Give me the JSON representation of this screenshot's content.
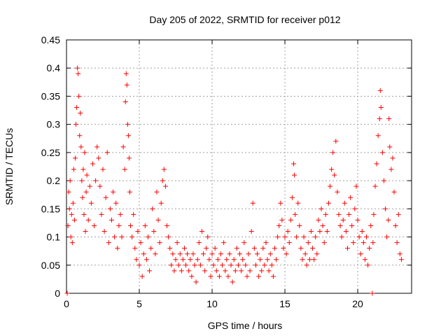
{
  "chart_data": {
    "type": "scatter",
    "title": "Day 205 of 2022, SRMTID for receiver p012",
    "xlabel": "GPS time / hours",
    "ylabel": "SRMTID / TECUs",
    "xlim": [
      0,
      23.7
    ],
    "ylim": [
      0,
      0.45
    ],
    "xticks": [
      0,
      5,
      10,
      15,
      20
    ],
    "xtick_labels": [
      "0",
      "5",
      "10",
      "15",
      "20"
    ],
    "yticks": [
      0,
      0.05,
      0.1,
      0.15,
      0.2,
      0.25,
      0.3,
      0.35,
      0.4,
      0.45
    ],
    "ytick_labels": [
      "0",
      "0.05",
      "0.1",
      "0.15",
      "0.2",
      "0.25",
      "0.3",
      "0.35",
      "0.4",
      "0.45"
    ],
    "grid": true,
    "marker": "+",
    "color": "#ff0000",
    "series": [
      {
        "name": "p012",
        "points": [
          [
            0.05,
            0.0
          ],
          [
            0.1,
            0.12
          ],
          [
            0.15,
            0.18
          ],
          [
            0.2,
            0.15
          ],
          [
            0.25,
            0.2
          ],
          [
            0.3,
            0.1
          ],
          [
            0.35,
            0.14
          ],
          [
            0.4,
            0.09
          ],
          [
            0.45,
            0.16
          ],
          [
            0.5,
            0.22
          ],
          [
            0.55,
            0.13
          ],
          [
            0.6,
            0.24
          ],
          [
            0.65,
            0.3
          ],
          [
            0.7,
            0.33
          ],
          [
            0.75,
            0.4
          ],
          [
            0.8,
            0.39
          ],
          [
            0.85,
            0.35
          ],
          [
            0.9,
            0.28
          ],
          [
            0.95,
            0.32
          ],
          [
            1.0,
            0.26
          ],
          [
            1.05,
            0.2
          ],
          [
            1.1,
            0.17
          ],
          [
            1.15,
            0.22
          ],
          [
            1.2,
            0.14
          ],
          [
            1.25,
            0.25
          ],
          [
            1.3,
            0.11
          ],
          [
            1.35,
            0.18
          ],
          [
            1.4,
            0.21
          ],
          [
            1.5,
            0.13
          ],
          [
            1.6,
            0.19
          ],
          [
            1.7,
            0.16
          ],
          [
            1.8,
            0.23
          ],
          [
            1.9,
            0.12
          ],
          [
            2.0,
            0.2
          ],
          [
            2.1,
            0.26
          ],
          [
            2.2,
            0.24
          ],
          [
            2.3,
            0.19
          ],
          [
            2.4,
            0.14
          ],
          [
            2.5,
            0.22
          ],
          [
            2.6,
            0.11
          ],
          [
            2.7,
            0.17
          ],
          [
            2.8,
            0.25
          ],
          [
            2.9,
            0.09
          ],
          [
            3.0,
            0.15
          ],
          [
            3.1,
            0.13
          ],
          [
            3.2,
            0.18
          ],
          [
            3.3,
            0.1
          ],
          [
            3.4,
            0.16
          ],
          [
            3.5,
            0.08
          ],
          [
            3.6,
            0.12
          ],
          [
            3.7,
            0.14
          ],
          [
            3.8,
            0.1
          ],
          [
            3.9,
            0.26
          ],
          [
            4.0,
            0.22
          ],
          [
            4.05,
            0.34
          ],
          [
            4.1,
            0.39
          ],
          [
            4.15,
            0.37
          ],
          [
            4.2,
            0.3
          ],
          [
            4.25,
            0.28
          ],
          [
            4.3,
            0.24
          ],
          [
            4.35,
            0.18
          ],
          [
            4.4,
            0.12
          ],
          [
            4.5,
            0.1
          ],
          [
            4.6,
            0.14
          ],
          [
            4.7,
            0.08
          ],
          [
            4.8,
            0.06
          ],
          [
            4.9,
            0.11
          ],
          [
            5.0,
            0.05
          ],
          [
            5.1,
            0.09
          ],
          [
            5.2,
            0.03
          ],
          [
            5.3,
            0.07
          ],
          [
            5.4,
            0.12
          ],
          [
            5.5,
            0.06
          ],
          [
            5.6,
            0.1
          ],
          [
            5.7,
            0.04
          ],
          [
            5.8,
            0.08
          ],
          [
            5.9,
            0.15
          ],
          [
            6.0,
            0.11
          ],
          [
            6.1,
            0.07
          ],
          [
            6.2,
            0.18
          ],
          [
            6.3,
            0.13
          ],
          [
            6.4,
            0.09
          ],
          [
            6.5,
            0.16
          ],
          [
            6.6,
            0.2
          ],
          [
            6.7,
            0.22
          ],
          [
            6.8,
            0.19
          ],
          [
            6.9,
            0.12
          ],
          [
            7.0,
            0.1
          ],
          [
            7.1,
            0.08
          ],
          [
            7.2,
            0.05
          ],
          [
            7.3,
            0.07
          ],
          [
            7.4,
            0.04
          ],
          [
            7.5,
            0.06
          ],
          [
            7.6,
            0.09
          ],
          [
            7.7,
            0.05
          ],
          [
            7.8,
            0.07
          ],
          [
            7.9,
            0.04
          ],
          [
            8.0,
            0.06
          ],
          [
            8.1,
            0.08
          ],
          [
            8.2,
            0.05
          ],
          [
            8.3,
            0.07
          ],
          [
            8.4,
            0.04
          ],
          [
            8.5,
            0.06
          ],
          [
            8.6,
            0.03
          ],
          [
            8.7,
            0.07
          ],
          [
            8.8,
            0.05
          ],
          [
            8.9,
            0.02
          ],
          [
            9.0,
            0.06
          ],
          [
            9.1,
            0.09
          ],
          [
            9.2,
            0.05
          ],
          [
            9.3,
            0.11
          ],
          [
            9.4,
            0.07
          ],
          [
            9.5,
            0.04
          ],
          [
            9.6,
            0.08
          ],
          [
            9.7,
            0.1
          ],
          [
            9.8,
            0.06
          ],
          [
            9.9,
            0.03
          ],
          [
            10.0,
            0.07
          ],
          [
            10.1,
            0.05
          ],
          [
            10.2,
            0.08
          ],
          [
            10.3,
            0.04
          ],
          [
            10.4,
            0.06
          ],
          [
            10.5,
            0.03
          ],
          [
            10.6,
            0.07
          ],
          [
            10.7,
            0.05
          ],
          [
            10.8,
            0.09
          ],
          [
            10.9,
            0.04
          ],
          [
            11.0,
            0.06
          ],
          [
            11.1,
            0.03
          ],
          [
            11.2,
            0.07
          ],
          [
            11.3,
            0.05
          ],
          [
            11.4,
            0.02
          ],
          [
            11.5,
            0.06
          ],
          [
            11.6,
            0.04
          ],
          [
            11.7,
            0.08
          ],
          [
            11.8,
            0.05
          ],
          [
            11.9,
            0.07
          ],
          [
            12.0,
            0.04
          ],
          [
            12.1,
            0.06
          ],
          [
            12.2,
            0.09
          ],
          [
            12.3,
            0.05
          ],
          [
            12.4,
            0.03
          ],
          [
            12.5,
            0.07
          ],
          [
            12.6,
            0.04
          ],
          [
            12.7,
            0.11
          ],
          [
            12.8,
            0.16
          ],
          [
            12.9,
            0.08
          ],
          [
            13.0,
            0.05
          ],
          [
            13.1,
            0.07
          ],
          [
            13.2,
            0.03
          ],
          [
            13.3,
            0.06
          ],
          [
            13.4,
            0.04
          ],
          [
            13.5,
            0.08
          ],
          [
            13.6,
            0.05
          ],
          [
            13.7,
            0.09
          ],
          [
            13.8,
            0.06
          ],
          [
            13.9,
            0.04
          ],
          [
            14.0,
            0.07
          ],
          [
            14.1,
            0.05
          ],
          [
            14.2,
            0.03
          ],
          [
            14.3,
            0.08
          ],
          [
            14.4,
            0.06
          ],
          [
            14.5,
            0.1
          ],
          [
            14.6,
            0.12
          ],
          [
            14.7,
            0.16
          ],
          [
            14.8,
            0.13
          ],
          [
            14.9,
            0.08
          ],
          [
            15.0,
            0.1
          ],
          [
            15.1,
            0.07
          ],
          [
            15.2,
            0.11
          ],
          [
            15.3,
            0.09
          ],
          [
            15.4,
            0.13
          ],
          [
            15.5,
            0.17
          ],
          [
            15.6,
            0.23
          ],
          [
            15.65,
            0.21
          ],
          [
            15.7,
            0.14
          ],
          [
            15.8,
            0.1
          ],
          [
            15.9,
            0.16
          ],
          [
            16.0,
            0.12
          ],
          [
            16.1,
            0.08
          ],
          [
            16.2,
            0.06
          ],
          [
            16.3,
            0.1
          ],
          [
            16.4,
            0.07
          ],
          [
            16.5,
            0.05
          ],
          [
            16.6,
            0.09
          ],
          [
            16.7,
            0.06
          ],
          [
            16.8,
            0.11
          ],
          [
            16.9,
            0.08
          ],
          [
            17.0,
            0.06
          ],
          [
            17.1,
            0.1
          ],
          [
            17.2,
            0.07
          ],
          [
            17.3,
            0.13
          ],
          [
            17.4,
            0.11
          ],
          [
            17.5,
            0.15
          ],
          [
            17.6,
            0.12
          ],
          [
            17.7,
            0.09
          ],
          [
            17.8,
            0.14
          ],
          [
            17.9,
            0.11
          ],
          [
            18.0,
            0.16
          ],
          [
            18.1,
            0.19
          ],
          [
            18.2,
            0.22
          ],
          [
            18.3,
            0.25
          ],
          [
            18.4,
            0.21
          ],
          [
            18.5,
            0.27
          ],
          [
            18.6,
            0.18
          ],
          [
            18.7,
            0.14
          ],
          [
            18.8,
            0.12
          ],
          [
            18.9,
            0.1
          ],
          [
            19.0,
            0.13
          ],
          [
            19.1,
            0.16
          ],
          [
            19.2,
            0.11
          ],
          [
            19.3,
            0.08
          ],
          [
            19.4,
            0.14
          ],
          [
            19.5,
            0.17
          ],
          [
            19.6,
            0.12
          ],
          [
            19.7,
            0.09
          ],
          [
            19.8,
            0.15
          ],
          [
            19.9,
            0.19
          ],
          [
            20.0,
            0.13
          ],
          [
            20.1,
            0.1
          ],
          [
            20.2,
            0.07
          ],
          [
            20.3,
            0.11
          ],
          [
            20.4,
            0.09
          ],
          [
            20.5,
            0.06
          ],
          [
            20.6,
            0.1
          ],
          [
            20.7,
            0.05
          ],
          [
            20.8,
            0.08
          ],
          [
            20.9,
            0.12
          ],
          [
            21.0,
            0.0
          ],
          [
            21.05,
            0.09
          ],
          [
            21.1,
            0.14
          ],
          [
            21.2,
            0.19
          ],
          [
            21.3,
            0.23
          ],
          [
            21.4,
            0.28
          ],
          [
            21.5,
            0.31
          ],
          [
            21.55,
            0.36
          ],
          [
            21.6,
            0.33
          ],
          [
            21.7,
            0.25
          ],
          [
            21.8,
            0.2
          ],
          [
            21.9,
            0.15
          ],
          [
            22.0,
            0.1
          ],
          [
            22.1,
            0.13
          ],
          [
            22.15,
            0.31
          ],
          [
            22.2,
            0.26
          ],
          [
            22.3,
            0.22
          ],
          [
            22.4,
            0.24
          ],
          [
            22.5,
            0.18
          ],
          [
            22.6,
            0.12
          ],
          [
            22.7,
            0.09
          ],
          [
            22.8,
            0.14
          ],
          [
            22.9,
            0.07
          ],
          [
            23.0,
            0.06
          ]
        ]
      }
    ]
  }
}
